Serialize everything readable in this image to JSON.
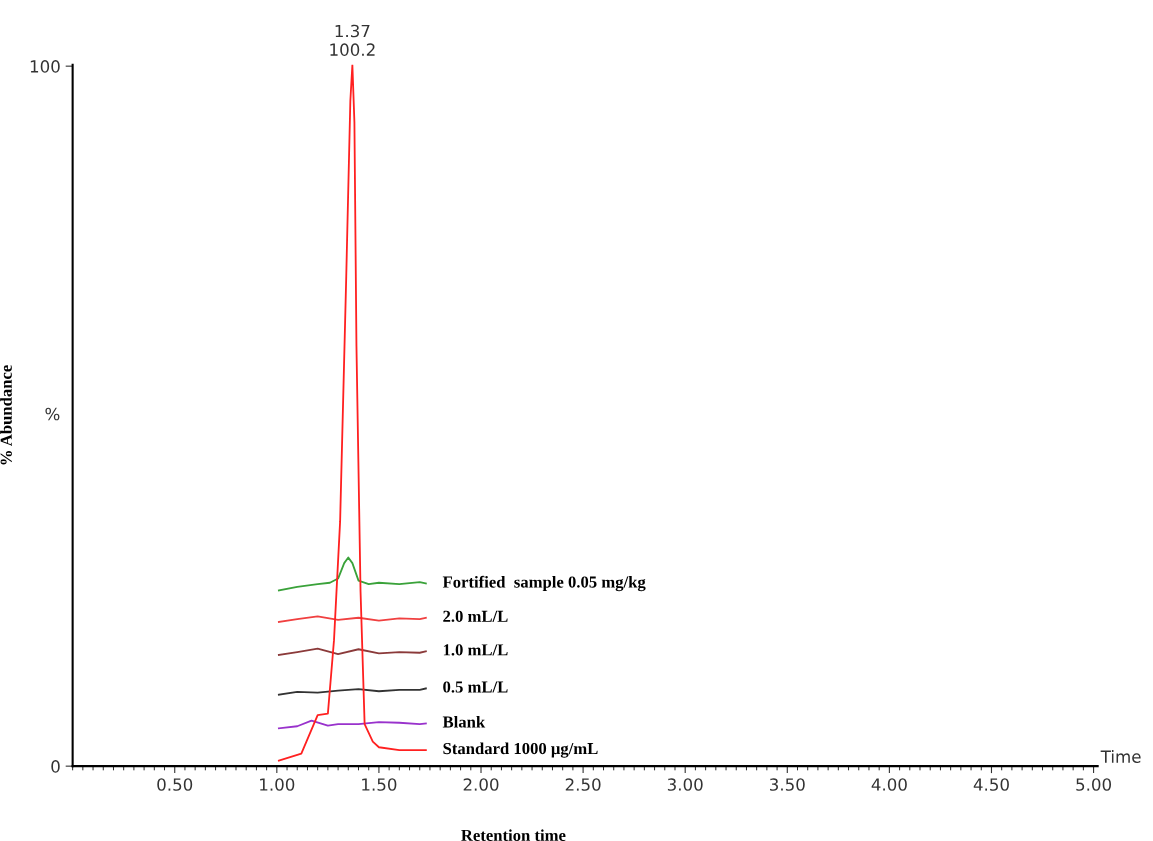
{
  "chart_data": {
    "type": "line",
    "xlabel": "Retention time",
    "ylabel": "% Abundance",
    "annotations": [
      {
        "text": "1.37\n100.2",
        "x": 1.37,
        "y": 100.2
      },
      "%",
      "Time"
    ],
    "xlim": [
      0,
      5.02
    ],
    "ylim": [
      0,
      100.2
    ],
    "xticks": [
      {
        "value": 0.5,
        "label": "0.50"
      },
      {
        "value": 1.0,
        "label": "1.00"
      },
      {
        "value": 1.5,
        "label": "1.50"
      },
      {
        "value": 2.0,
        "label": "2.00"
      },
      {
        "value": 2.5,
        "label": "2.50"
      },
      {
        "value": 3.0,
        "label": "3.00"
      },
      {
        "value": 3.5,
        "label": "3.50"
      },
      {
        "value": 4.0,
        "label": "4.00"
      },
      {
        "value": 4.5,
        "label": "4.50"
      },
      {
        "value": 5.0,
        "label": "5.00"
      }
    ],
    "yticks": [
      0,
      100
    ],
    "grid": false,
    "legend": false,
    "marker": "none",
    "line_style": "solid",
    "series": [
      {
        "name": "Fortified  sample 0.05 mg/kg",
        "color": "#3aa23a",
        "x": [
          1.01,
          1.1,
          1.2,
          1.26,
          1.3,
          1.33,
          1.35,
          1.37,
          1.4,
          1.45,
          1.5,
          1.6,
          1.7,
          1.73
        ],
        "values": [
          25.1,
          25.6,
          26.0,
          26.2,
          26.8,
          29.0,
          29.8,
          29.0,
          26.5,
          26.0,
          26.2,
          26.0,
          26.3,
          26.1
        ]
      },
      {
        "name": "2.0 mL/L",
        "color": "#f04040",
        "x": [
          1.01,
          1.1,
          1.2,
          1.3,
          1.4,
          1.5,
          1.6,
          1.7,
          1.73
        ],
        "values": [
          20.6,
          21.0,
          21.4,
          20.9,
          21.2,
          20.8,
          21.1,
          21.0,
          21.2
        ]
      },
      {
        "name": "1.0 mL/L",
        "color": "#8b3a3a",
        "x": [
          1.01,
          1.1,
          1.2,
          1.3,
          1.4,
          1.5,
          1.6,
          1.7,
          1.73
        ],
        "values": [
          15.9,
          16.3,
          16.8,
          16.0,
          16.7,
          16.1,
          16.3,
          16.2,
          16.4
        ]
      },
      {
        "name": "0.5 mL/L",
        "color": "#333333",
        "x": [
          1.01,
          1.1,
          1.2,
          1.3,
          1.4,
          1.5,
          1.6,
          1.7,
          1.73
        ],
        "values": [
          10.2,
          10.6,
          10.5,
          10.8,
          11.0,
          10.7,
          10.9,
          10.9,
          11.1
        ]
      },
      {
        "name": "Blank",
        "color": "#9932cc",
        "x": [
          1.01,
          1.1,
          1.17,
          1.25,
          1.3,
          1.4,
          1.5,
          1.6,
          1.7,
          1.73
        ],
        "values": [
          5.4,
          5.7,
          6.5,
          5.8,
          6.0,
          6.0,
          6.3,
          6.2,
          6.0,
          6.1
        ]
      },
      {
        "name": "Standard 1000 μg/mL",
        "color": "#ff2020",
        "x": [
          1.01,
          1.12,
          1.2,
          1.25,
          1.28,
          1.31,
          1.34,
          1.36,
          1.37,
          1.38,
          1.39,
          1.41,
          1.43,
          1.47,
          1.5,
          1.6,
          1.73
        ],
        "values": [
          0.8,
          1.8,
          7.3,
          7.5,
          18,
          35,
          70,
          95,
          100.2,
          92,
          60,
          25,
          6,
          3.5,
          2.7,
          2.3,
          2.3
        ]
      }
    ]
  }
}
